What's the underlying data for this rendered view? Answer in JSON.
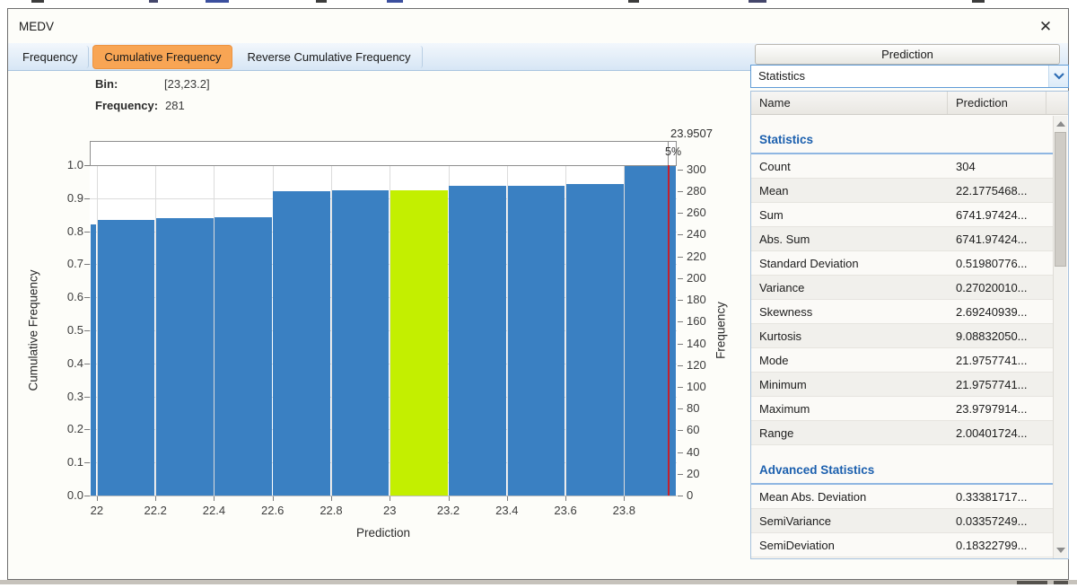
{
  "window": {
    "title": "MEDV",
    "close_label": "✕"
  },
  "tabs": [
    {
      "label": "Frequency",
      "active": false
    },
    {
      "label": "Cumulative Frequency",
      "active": true
    },
    {
      "label": "Reverse Cumulative Frequency",
      "active": false
    }
  ],
  "tooltip": {
    "bin_label": "Bin:",
    "bin_value": "[23,23.2]",
    "freq_label": "Frequency:",
    "freq_value": "281"
  },
  "right_panel": {
    "button_label": "Prediction",
    "dropdown_value": "Statistics",
    "table_headers": {
      "name": "Name",
      "prediction": "Prediction"
    },
    "rows": [
      {
        "type": "section",
        "name": "Statistics"
      },
      {
        "type": "row",
        "name": "Count",
        "value": "304"
      },
      {
        "type": "row",
        "name": "Mean",
        "value": "22.1775468..."
      },
      {
        "type": "row",
        "name": "Sum",
        "value": "6741.97424..."
      },
      {
        "type": "row",
        "name": "Abs. Sum",
        "value": "6741.97424..."
      },
      {
        "type": "row",
        "name": "Standard Deviation",
        "value": "0.51980776..."
      },
      {
        "type": "row",
        "name": "Variance",
        "value": "0.27020010..."
      },
      {
        "type": "row",
        "name": "Skewness",
        "value": "2.69240939..."
      },
      {
        "type": "row",
        "name": "Kurtosis",
        "value": "9.08832050..."
      },
      {
        "type": "row",
        "name": "Mode",
        "value": "21.9757741..."
      },
      {
        "type": "row",
        "name": "Minimum",
        "value": "21.9757741..."
      },
      {
        "type": "row",
        "name": "Maximum",
        "value": "23.9797914..."
      },
      {
        "type": "row",
        "name": "Range",
        "value": "2.00401724..."
      },
      {
        "type": "section",
        "name": "Advanced Statistics"
      },
      {
        "type": "row",
        "name": "Mean Abs. Deviation",
        "value": "0.33381717..."
      },
      {
        "type": "row",
        "name": "SemiVariance",
        "value": "0.03357249..."
      },
      {
        "type": "row",
        "name": "SemiDeviation",
        "value": "0.18322799..."
      }
    ]
  },
  "chart_data": {
    "type": "bar",
    "title": "",
    "xlabel": "Prediction",
    "ylabel_left": "Cumulative Frequency",
    "ylabel_right": "Frequency",
    "x_domain": [
      21.9758,
      23.9798
    ],
    "x_ticks": [
      22,
      22.2,
      22.4,
      22.6,
      22.8,
      23,
      23.2,
      23.4,
      23.6,
      23.8
    ],
    "y_left_ticks": [
      0.0,
      0.1,
      0.2,
      0.3,
      0.4,
      0.5,
      0.6,
      0.7,
      0.8,
      0.9,
      1.0
    ],
    "y_left_range": [
      0,
      1
    ],
    "y_right_ticks": [
      0,
      20,
      40,
      60,
      80,
      100,
      120,
      140,
      160,
      180,
      200,
      220,
      240,
      260,
      280,
      300
    ],
    "y_right_max": 304,
    "grid": true,
    "bins": [
      {
        "x0": 21.9758,
        "x1": 22.0,
        "cum_fraction": 0.82,
        "cum_count": 249,
        "highlight": false
      },
      {
        "x0": 22.0,
        "x1": 22.2,
        "cum_fraction": 0.8355,
        "cum_count": 254,
        "highlight": false
      },
      {
        "x0": 22.2,
        "x1": 22.4,
        "cum_fraction": 0.8388,
        "cum_count": 255,
        "highlight": false
      },
      {
        "x0": 22.4,
        "x1": 22.6,
        "cum_fraction": 0.8421,
        "cum_count": 256,
        "highlight": false
      },
      {
        "x0": 22.6,
        "x1": 22.8,
        "cum_fraction": 0.9211,
        "cum_count": 280,
        "highlight": false
      },
      {
        "x0": 22.8,
        "x1": 23.0,
        "cum_fraction": 0.9243,
        "cum_count": 281,
        "highlight": false
      },
      {
        "x0": 23.0,
        "x1": 23.2,
        "cum_fraction": 0.9243,
        "cum_count": 281,
        "highlight": true
      },
      {
        "x0": 23.2,
        "x1": 23.4,
        "cum_fraction": 0.9375,
        "cum_count": 285,
        "highlight": false
      },
      {
        "x0": 23.4,
        "x1": 23.6,
        "cum_fraction": 0.9375,
        "cum_count": 285,
        "highlight": false
      },
      {
        "x0": 23.6,
        "x1": 23.8,
        "cum_fraction": 0.9441,
        "cum_count": 287,
        "highlight": false
      },
      {
        "x0": 23.8,
        "x1": 23.9798,
        "cum_fraction": 1.0,
        "cum_count": 304,
        "highlight": false
      }
    ],
    "marker": {
      "x": 23.9507,
      "label": "23.9507",
      "percent_label": "5%"
    },
    "colors": {
      "bar": "#3a80c2",
      "highlight_bar": "#c3ef00",
      "marker_line": "#c2202e",
      "active_tab": "#f8a554",
      "section_text": "#1b5fae",
      "grid": "#dcdcdc"
    }
  }
}
